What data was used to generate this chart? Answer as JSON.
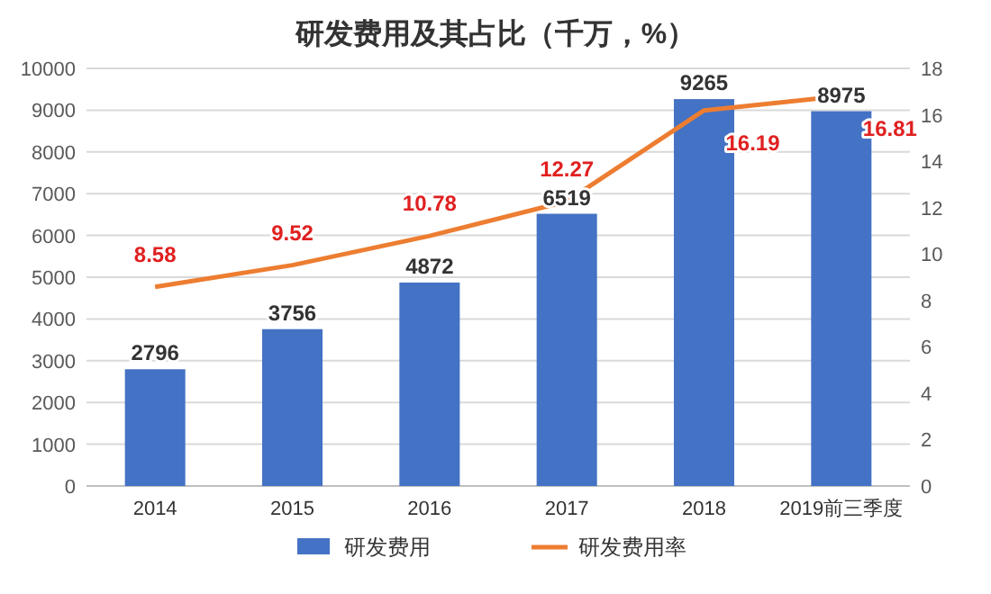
{
  "chart_data": {
    "type": "bar",
    "title": "研发费用及其占比（千万，%）",
    "categories": [
      "2014",
      "2015",
      "2016",
      "2017",
      "2018",
      "2019前三季度"
    ],
    "series": [
      {
        "name": "研发费用",
        "color": "#4472c4",
        "values": [
          2796,
          3756,
          4872,
          6519,
          9265,
          8975
        ]
      },
      {
        "name": "研发费用率",
        "type": "line",
        "axis": "y2",
        "color": "#ed7d31",
        "values": [
          8.58,
          9.52,
          10.78,
          12.27,
          16.19,
          16.81
        ]
      }
    ],
    "data_labels": true,
    "ylim": [
      0,
      10000
    ],
    "yticks": [
      0,
      1000,
      2000,
      3000,
      4000,
      5000,
      6000,
      7000,
      8000,
      9000,
      10000
    ],
    "y2lim": [
      0,
      18
    ],
    "y2ticks": [
      0,
      2,
      4,
      6,
      8,
      10,
      12,
      14,
      16,
      18
    ],
    "grid": "y",
    "legend": "bottom",
    "marker": "none",
    "line_style": "solid"
  }
}
